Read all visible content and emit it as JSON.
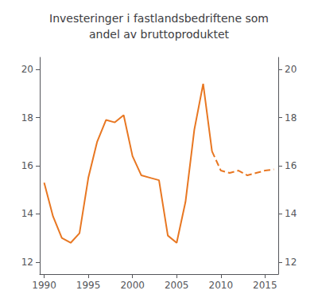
{
  "chart_data": {
    "type": "line",
    "title": "Investeringer i fastlandsbedriftene som\nandel av bruttoproduktet",
    "xlim": [
      1989.5,
      2016.5
    ],
    "xticks": [
      1990,
      1995,
      2000,
      2005,
      2010,
      2015
    ],
    "ylim": [
      11.5,
      20.5
    ],
    "yticks": [
      12,
      14,
      16,
      18,
      20
    ],
    "y2lim": [
      11.5,
      20.5
    ],
    "y2ticks": [
      12,
      14,
      16,
      18,
      20
    ],
    "grid": false,
    "series": [
      {
        "color": "#E87722",
        "line_style": "solid",
        "x": [
          1990,
          1991,
          1992,
          1993,
          1994,
          1995,
          1996,
          1997,
          1998,
          1999,
          2000,
          2001,
          2002,
          2003,
          2004,
          2005,
          2006,
          2007,
          2008,
          2009
        ],
        "values": [
          15.3,
          13.9,
          13.0,
          12.8,
          13.2,
          15.5,
          17.0,
          17.9,
          17.8,
          18.1,
          16.4,
          15.6,
          15.5,
          15.4,
          13.1,
          12.8,
          14.5,
          17.5,
          19.4,
          16.6
        ]
      },
      {
        "color": "#E87722",
        "line_style": "dashed",
        "x": [
          2009,
          2010,
          2011,
          2012,
          2013,
          2014,
          2015,
          2016
        ],
        "values": [
          16.6,
          15.8,
          15.7,
          15.8,
          15.6,
          15.7,
          15.8,
          15.85
        ]
      }
    ]
  }
}
